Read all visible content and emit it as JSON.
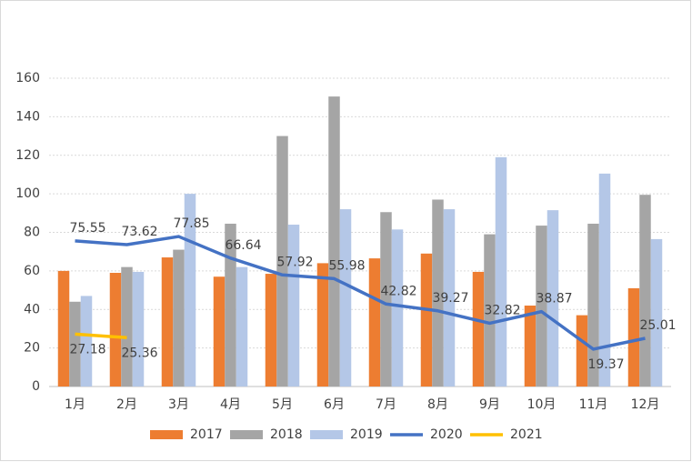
{
  "chart_data": {
    "type": "bar-line",
    "categories": [
      "1月",
      "2月",
      "3月",
      "4月",
      "5月",
      "6月",
      "7月",
      "8月",
      "9月",
      "10月",
      "11月",
      "12月"
    ],
    "series": [
      {
        "name": "2017",
        "type": "bar",
        "color": "#ed7d31",
        "values": [
          60,
          59,
          67,
          57,
          58.5,
          64,
          66.5,
          69,
          59.5,
          42,
          37,
          51
        ]
      },
      {
        "name": "2018",
        "type": "bar",
        "color": "#a5a5a5",
        "values": [
          44,
          62,
          71,
          84.5,
          130,
          150.5,
          90.5,
          97,
          79,
          83.5,
          84.5,
          99.5
        ]
      },
      {
        "name": "2019",
        "type": "bar",
        "color": "#b4c7e7",
        "values": [
          47,
          59.5,
          100,
          62,
          84,
          92,
          81.5,
          92,
          119,
          91.5,
          110.5,
          76.5
        ]
      },
      {
        "name": "2020",
        "type": "line",
        "color": "#4472c4",
        "values": [
          75.55,
          73.62,
          77.85,
          66.64,
          57.92,
          55.98,
          42.82,
          39.27,
          32.82,
          38.87,
          19.37,
          25.01
        ]
      },
      {
        "name": "2021",
        "type": "line",
        "color": "#ffc000",
        "values": [
          27.18,
          25.36,
          null,
          null,
          null,
          null,
          null,
          null,
          null,
          null,
          null,
          null
        ]
      }
    ],
    "ylim": [
      0,
      160
    ],
    "yticks": [
      0,
      20,
      40,
      60,
      80,
      100,
      120,
      140,
      160
    ],
    "grid": true
  }
}
